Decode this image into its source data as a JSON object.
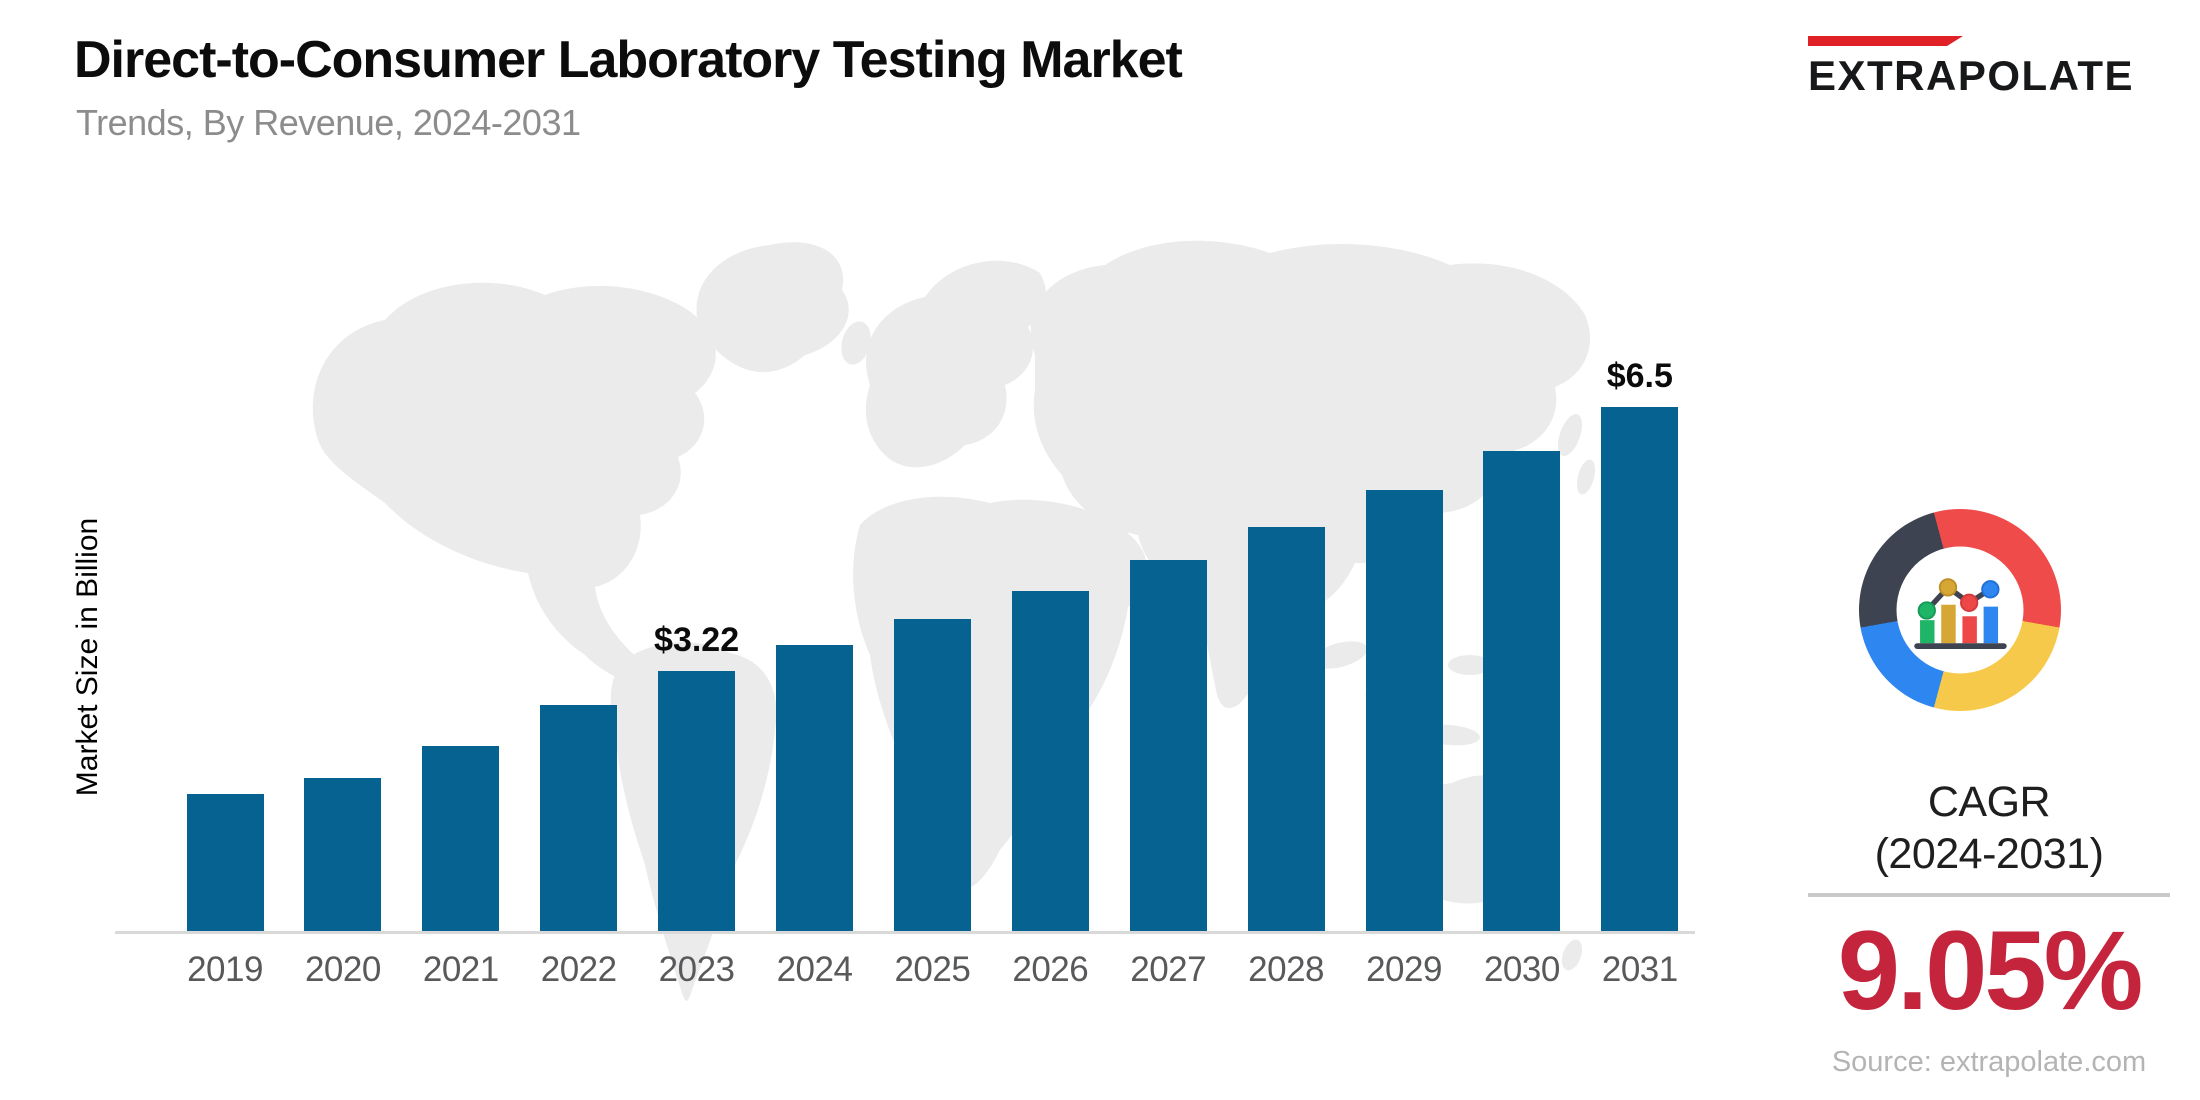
{
  "header": {
    "title": "Direct-to-Consumer Laboratory Testing Market",
    "subtitle": "Trends, By Revenue, 2024-2031"
  },
  "logo": {
    "text": "EXTRAPOLATE",
    "accent_color": "#e02128"
  },
  "background_map": {
    "name": "world-map",
    "color": "#ebebeb"
  },
  "chart_data": {
    "type": "bar",
    "title": "Direct-to-Consumer Laboratory Testing Market, Trends, By Revenue, 2024-2031",
    "categories": [
      "2019",
      "2020",
      "2021",
      "2022",
      "2023",
      "2024",
      "2025",
      "2026",
      "2027",
      "2028",
      "2029",
      "2030",
      "2031"
    ],
    "values": [
      1.7,
      1.9,
      2.3,
      2.8,
      3.22,
      3.55,
      3.87,
      4.22,
      4.6,
      5.01,
      5.47,
      5.96,
      6.5
    ],
    "value_labels": [
      "",
      "",
      "",
      "",
      "$3.22",
      "",
      "",
      "",
      "",
      "",
      "",
      "",
      "$6.5"
    ],
    "unit": "USD Billion",
    "ylabel": "Market Size in Billion",
    "xlabel": "",
    "ylim": [
      0,
      6.5
    ],
    "grid": false,
    "legend": false,
    "bar_color": "#066290",
    "axis_line_color": "#d9d9d9"
  },
  "side_panel": {
    "icon": "donut-bar-chart-icon",
    "donut_segment_colors": {
      "red": "#ef4b4b",
      "yellow": "#f7c94a",
      "blue": "#2e86f0",
      "dark": "#3d4350"
    },
    "mini_chart_colors": {
      "green": "#1eb567",
      "gold": "#d6a734",
      "red": "#ee4747",
      "blue": "#2e86f0",
      "base": "#3d4350"
    },
    "cagr_label": "CAGR",
    "cagr_period": "(2024-2031)",
    "cagr_value": "9.05%",
    "cagr_value_color": "#c4243c",
    "source": "Source: extrapolate.com"
  }
}
